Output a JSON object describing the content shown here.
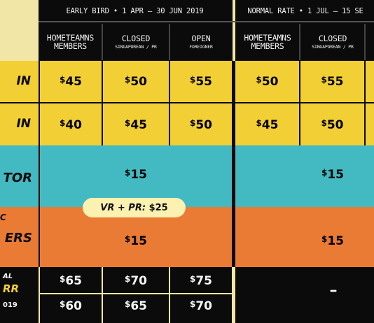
{
  "header": {
    "early_bird": "EARLY BIRD  •  1 APR – 30 JUN 2019",
    "normal_rate": "NORMAL RATE  •  1 JUL – 15 SE"
  },
  "columns": [
    {
      "title": "HOMETEAMNS\nMEMBERS",
      "sub": ""
    },
    {
      "title": "CLOSED",
      "sub": "SINGAPOREAN / PR"
    },
    {
      "title": "OPEN",
      "sub": "FOREIGNER"
    },
    {
      "title": "HOMETEAMNS\nMEMBERS",
      "sub": ""
    },
    {
      "title": "CLOSED",
      "sub": "SINGAPOREAN / PR"
    }
  ],
  "row_labels": {
    "row1": "IN",
    "row2": "IN",
    "row3": "TOR",
    "row4": "ERS",
    "row4_top": "C",
    "row5a": "AL",
    "row5b": "RR",
    "row5c": "019"
  },
  "prices": {
    "row1": [
      "45",
      "50",
      "55",
      "50",
      "55"
    ],
    "row2": [
      "40",
      "45",
      "50",
      "45",
      "50"
    ],
    "row3_early": "15",
    "row3_normal": "15",
    "row4_early": "15",
    "row4_normal": "15",
    "row5a": [
      "65",
      "70",
      "75"
    ],
    "row5b": [
      "60",
      "65",
      "70"
    ],
    "row5_normal": "–"
  },
  "currency": "$",
  "pill": {
    "label": "VR + PR:",
    "amount": "$25"
  },
  "colors": {
    "yellow": "#f2cf34",
    "teal": "#43b9c1",
    "orange": "#ea7b34",
    "black": "#0b0b0b",
    "cream": "#fbf1b0"
  }
}
